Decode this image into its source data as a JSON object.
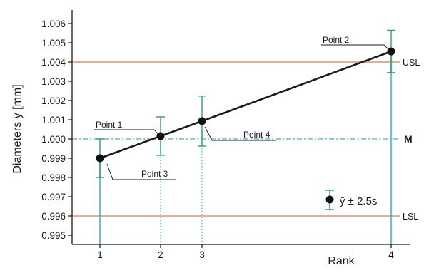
{
  "chart_data": {
    "type": "line",
    "xlabel": "Rank",
    "ylabel": "Diameters y [mm]",
    "ylim": [
      0.995,
      1.006
    ],
    "y_ticks": [
      "0.995",
      "0.996",
      "0.997",
      "0.998",
      "0.999",
      "1.000",
      "1.001",
      "1.002",
      "1.003",
      "1.004",
      "1.005",
      "1.006"
    ],
    "x_ticks": [
      "1",
      "2",
      "3",
      "4"
    ],
    "grid": false,
    "series": [
      {
        "x": [
          1,
          2,
          3,
          4
        ],
        "y": [
          0.999,
          1.00015,
          1.00093,
          1.00455
        ],
        "err": [
          0.001,
          0.001,
          0.0013,
          0.0011
        ]
      }
    ],
    "reference_lines": [
      {
        "label": "USL",
        "value": 1.004,
        "color": "#e07a45"
      },
      {
        "label": "M",
        "value": 1.0,
        "color": "#3fb4d1"
      },
      {
        "label": "LSL",
        "value": 0.996,
        "color": "#e07a45"
      }
    ],
    "annotations": [
      {
        "text": "Point 1",
        "x": 2
      },
      {
        "text": "Point 2",
        "x": 4
      },
      {
        "text": "Point 3",
        "x": 1
      },
      {
        "text": "Point 4",
        "x": 3
      }
    ],
    "legend": {
      "label": "ȳ ± 2.5s",
      "position": "bottom-right"
    },
    "colors": {
      "line": "#1a1a1a",
      "errorbar": "#2aa06e",
      "stem": "#3fb4d1",
      "spec": "#e07a45"
    }
  }
}
